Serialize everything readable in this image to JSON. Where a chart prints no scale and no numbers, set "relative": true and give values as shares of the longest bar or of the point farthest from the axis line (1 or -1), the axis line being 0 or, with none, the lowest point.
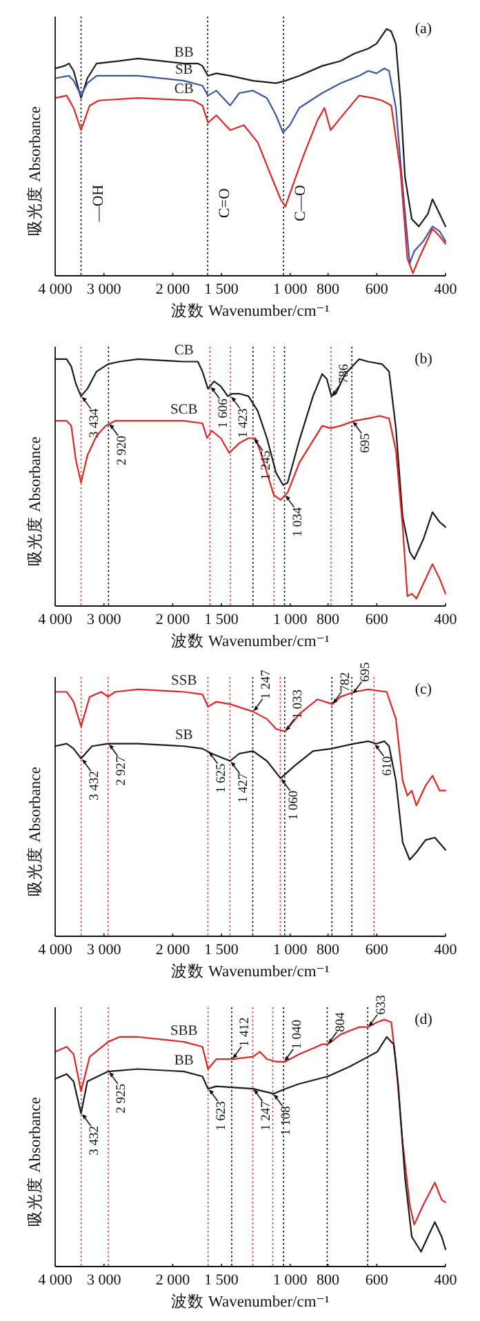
{
  "chart_data": [
    {
      "type": "line",
      "title": "(a)",
      "xlabel": "波数 Wavenumber/cm⁻¹",
      "ylabel": "吸光度 Absorbance",
      "relative": true,
      "log": "x",
      "xlim": [
        4000,
        400
      ],
      "xticks": [
        {
          "value": 4000,
          "label": "4 000"
        },
        {
          "value": 3000,
          "label": "3 000"
        },
        {
          "value": 2000,
          "label": "2 000"
        },
        {
          "value": 1500,
          "label": "1 500"
        },
        {
          "value": 1000,
          "label": "1 000"
        },
        800,
        600,
        400
      ],
      "series": [
        {
          "name": "BB",
          "color": "#1a1a1a",
          "x": [
            4000,
            3789,
            3687,
            3588,
            3434,
            3308,
            3133,
            2736,
            2454,
            2142,
            1870,
            1724,
            1678,
            1624,
            1546,
            1425,
            1245,
            1087,
            1029,
            948,
            828,
            743,
            685,
            631,
            601,
            566,
            551,
            536,
            522,
            508,
            488,
            468,
            444,
            432,
            414,
            400
          ],
          "values": [
            0.84,
            0.85,
            0.86,
            0.83,
            0.72,
            0.8,
            0.86,
            0.87,
            0.88,
            0.87,
            0.86,
            0.86,
            0.85,
            0.81,
            0.82,
            0.81,
            0.79,
            0.78,
            0.79,
            0.81,
            0.85,
            0.87,
            0.9,
            0.92,
            0.94,
            1,
            0.99,
            0.94,
            0.72,
            0.4,
            0.23,
            0.2,
            0.25,
            0.31,
            0.25,
            0.2
          ]
        },
        {
          "name": "SB",
          "color": "#3a55a8",
          "x": [
            4000,
            3687,
            3588,
            3434,
            3308,
            3133,
            2454,
            1870,
            1678,
            1624,
            1546,
            1425,
            1350,
            1245,
            1147,
            1087,
            1043,
            1002,
            948,
            828,
            743,
            666,
            631,
            601,
            574,
            558,
            536,
            515,
            494,
            481,
            456,
            432,
            414,
            400
          ],
          "values": [
            0.8,
            0.81,
            0.79,
            0.73,
            0.78,
            0.81,
            0.81,
            0.79,
            0.77,
            0.73,
            0.75,
            0.69,
            0.74,
            0.75,
            0.72,
            0.65,
            0.58,
            0.61,
            0.68,
            0.74,
            0.78,
            0.81,
            0.83,
            0.82,
            0.84,
            0.83,
            0.68,
            0.36,
            0.05,
            0.1,
            0.14,
            0.2,
            0.18,
            0.14
          ]
        },
        {
          "name": "CB",
          "color": "#e02424",
          "x": [
            4000,
            3738,
            3588,
            3434,
            3263,
            3091,
            2454,
            1771,
            1678,
            1624,
            1546,
            1425,
            1314,
            1211,
            1116,
            1058,
            1029,
            988,
            923,
            851,
            817,
            788,
            743,
            666,
            614,
            582,
            551,
            522,
            501,
            485,
            468,
            432,
            414,
            400
          ],
          "values": [
            0.72,
            0.73,
            0.68,
            0.59,
            0.69,
            0.71,
            0.72,
            0.71,
            0.69,
            0.62,
            0.65,
            0.59,
            0.61,
            0.54,
            0.4,
            0.31,
            0.28,
            0.36,
            0.49,
            0.63,
            0.68,
            0.59,
            0.64,
            0.73,
            0.72,
            0.71,
            0.69,
            0.43,
            0.07,
            0.01,
            0.07,
            0.19,
            0.16,
            0.13
          ]
        }
      ],
      "ref_lines": [
        {
          "axis": "x",
          "value": 3434,
          "label": "—OH",
          "color": "#000000",
          "line_style": "dotted"
        },
        {
          "axis": "x",
          "value": 1627,
          "label": "C=O",
          "color": "#000000",
          "line_style": "dotted"
        },
        {
          "axis": "x",
          "value": 1040,
          "label": "C—O",
          "color": "#000000",
          "line_style": "dotted"
        }
      ]
    },
    {
      "type": "line",
      "title": "(b)",
      "xlabel": "波数 Wavenumber/cm⁻¹",
      "ylabel": "吸光度 Absorbance",
      "relative": true,
      "log": "x",
      "xlim": [
        4000,
        400
      ],
      "xticks": [
        {
          "value": 4000,
          "label": "4 000"
        },
        {
          "value": 3000,
          "label": "3 000"
        },
        {
          "value": 2000,
          "label": "2 000"
        },
        {
          "value": 1500,
          "label": "1 500"
        },
        {
          "value": 1000,
          "label": "1 000"
        },
        800,
        600,
        400
      ],
      "series": [
        {
          "name": "CB",
          "color": "#1a1a1a",
          "x": [
            4000,
            3738,
            3638,
            3540,
            3434,
            3308,
            3133,
            2927,
            2736,
            2454,
            1870,
            1724,
            1678,
            1624,
            1567,
            1505,
            1445,
            1406,
            1350,
            1279,
            1211,
            1147,
            1087,
            1043,
            1015,
            948,
            874,
            828,
            806,
            784,
            764,
            723,
            666,
            631,
            582,
            558,
            536,
            515,
            494,
            481,
            456,
            432,
            414,
            400
          ],
          "values": [
            1,
            1,
            0.97,
            0.9,
            0.85,
            0.88,
            0.95,
            0.98,
            0.99,
            1,
            0.99,
            0.99,
            0.95,
            0.88,
            0.91,
            0.89,
            0.85,
            0.86,
            0.86,
            0.85,
            0.79,
            0.68,
            0.54,
            0.49,
            0.5,
            0.67,
            0.85,
            0.94,
            0.92,
            0.85,
            0.86,
            0.94,
            1,
            0.99,
            0.98,
            0.95,
            0.72,
            0.36,
            0.22,
            0.19,
            0.27,
            0.38,
            0.34,
            0.32
          ]
        },
        {
          "name": "SCB",
          "color": "#e02424",
          "x": [
            4000,
            3738,
            3638,
            3540,
            3434,
            3308,
            3133,
            2967,
            2811,
            2454,
            1870,
            1678,
            1633,
            1589,
            1505,
            1433,
            1350,
            1279,
            1228,
            1195,
            1147,
            1102,
            1058,
            1015,
            948,
            874,
            828,
            788,
            743,
            685,
            631,
            590,
            558,
            536,
            515,
            501,
            488,
            475,
            456,
            432,
            414,
            400
          ],
          "values": [
            0.75,
            0.75,
            0.73,
            0.59,
            0.5,
            0.61,
            0.69,
            0.73,
            0.75,
            0.75,
            0.75,
            0.74,
            0.68,
            0.71,
            0.68,
            0.62,
            0.66,
            0.68,
            0.68,
            0.63,
            0.54,
            0.45,
            0.43,
            0.46,
            0.58,
            0.67,
            0.73,
            0.72,
            0.73,
            0.75,
            0.76,
            0.77,
            0.76,
            0.63,
            0.32,
            0.04,
            0.05,
            0.03,
            0.09,
            0.17,
            0.11,
            0.05
          ]
        }
      ],
      "ref_lines": [
        {
          "axis": "x",
          "value": 3434,
          "color": "#e03030",
          "line_style": "dotted"
        },
        {
          "axis": "x",
          "value": 1606,
          "color": "#e03030",
          "line_style": "dotted"
        },
        {
          "axis": "x",
          "value": 1423,
          "color": "#e03030",
          "line_style": "dotted"
        },
        {
          "axis": "x",
          "value": 1100,
          "color": "#e03030",
          "line_style": "dotted"
        },
        {
          "axis": "x",
          "value": 786,
          "color": "#e03030",
          "line_style": "dotted"
        },
        {
          "axis": "x",
          "value": 2920,
          "color": "#000000",
          "line_style": "dotted"
        },
        {
          "axis": "x",
          "value": 1245,
          "color": "#000000",
          "line_style": "dotted"
        },
        {
          "axis": "x",
          "value": 1034,
          "color": "#000000",
          "line_style": "dotted"
        },
        {
          "axis": "x",
          "value": 695,
          "color": "#000000",
          "line_style": "dotted"
        }
      ],
      "annotations": [
        {
          "text": "3 434",
          "x": 3434,
          "y": 0.85
        },
        {
          "text": "2 920",
          "x": 2920,
          "y": 0.74
        },
        {
          "text": "1 606",
          "x": 1606,
          "y": 0.89
        },
        {
          "text": "1 423",
          "x": 1423,
          "y": 0.85
        },
        {
          "text": "1 245",
          "x": 1245,
          "y": 0.68
        },
        {
          "text": "1 034",
          "x": 1034,
          "y": 0.45
        },
        {
          "text": "786",
          "x": 786,
          "y": 0.85
        },
        {
          "text": "695",
          "x": 695,
          "y": 0.75
        }
      ]
    },
    {
      "type": "line",
      "title": "(c)",
      "xlabel": "波数 Wavenumber/cm⁻¹",
      "ylabel": "吸光度 Absorbance",
      "relative": true,
      "log": "x",
      "xlim": [
        4000,
        400
      ],
      "xticks": [
        {
          "value": 4000,
          "label": "4 000"
        },
        {
          "value": 3000,
          "label": "3 000"
        },
        {
          "value": 2000,
          "label": "2 000"
        },
        {
          "value": 1500,
          "label": "1 500"
        },
        {
          "value": 1000,
          "label": "1 000"
        },
        800,
        600,
        400
      ],
      "series": [
        {
          "name": "SSB",
          "color": "#e02424",
          "x": [
            4000,
            3738,
            3588,
            3434,
            3263,
            3049,
            2927,
            2811,
            2454,
            1870,
            1678,
            1624,
            1546,
            1425,
            1245,
            1147,
            1087,
            1029,
            948,
            851,
            780,
            743,
            685,
            631,
            566,
            536,
            515,
            501,
            488,
            475,
            450,
            432,
            414,
            400
          ],
          "values": [
            0.99,
            0.99,
            0.95,
            0.85,
            0.97,
            0.99,
            0.97,
            0.99,
            1,
            0.99,
            0.98,
            0.93,
            0.95,
            0.94,
            0.91,
            0.88,
            0.84,
            0.83,
            0.9,
            0.96,
            0.94,
            0.97,
            0.99,
            1,
            0.99,
            0.88,
            0.63,
            0.57,
            0.59,
            0.53,
            0.61,
            0.65,
            0.59,
            0.59
          ]
        },
        {
          "name": "SB",
          "color": "#1a1a1a",
          "x": [
            4000,
            3738,
            3588,
            3434,
            3219,
            2927,
            2454,
            1870,
            1678,
            1589,
            1425,
            1350,
            1245,
            1147,
            1058,
            975,
            874,
            784,
            685,
            631,
            601,
            574,
            558,
            536,
            515,
            494,
            475,
            450,
            426,
            400
          ],
          "values": [
            0.77,
            0.78,
            0.76,
            0.72,
            0.77,
            0.78,
            0.78,
            0.77,
            0.76,
            0.74,
            0.71,
            0.74,
            0.75,
            0.71,
            0.64,
            0.69,
            0.75,
            0.76,
            0.78,
            0.79,
            0.78,
            0.79,
            0.77,
            0.63,
            0.38,
            0.31,
            0.34,
            0.39,
            0.4,
            0.35
          ]
        }
      ],
      "ref_lines": [
        {
          "axis": "x",
          "value": 3432,
          "color": "#e03030",
          "line_style": "dotted"
        },
        {
          "axis": "x",
          "value": 2927,
          "color": "#e03030",
          "line_style": "dotted"
        },
        {
          "axis": "x",
          "value": 1625,
          "color": "#e03030",
          "line_style": "dotted"
        },
        {
          "axis": "x",
          "value": 1427,
          "color": "#e03030",
          "line_style": "dotted"
        },
        {
          "axis": "x",
          "value": 1060,
          "color": "#e03030",
          "line_style": "dotted"
        },
        {
          "axis": "x",
          "value": 610,
          "color": "#e03030",
          "line_style": "dotted"
        },
        {
          "axis": "x",
          "value": 1247,
          "color": "#000000",
          "line_style": "dotted"
        },
        {
          "axis": "x",
          "value": 1033,
          "color": "#000000",
          "line_style": "dotted"
        },
        {
          "axis": "x",
          "value": 782,
          "color": "#000000",
          "line_style": "dotted"
        },
        {
          "axis": "x",
          "value": 695,
          "color": "#000000",
          "line_style": "dotted"
        }
      ],
      "annotations": [
        {
          "text": "3 432",
          "x": 3432,
          "y": 0.72
        },
        {
          "text": "2 927",
          "x": 2927,
          "y": 0.78
        },
        {
          "text": "1 625",
          "x": 1625,
          "y": 0.75
        },
        {
          "text": "1 427",
          "x": 1427,
          "y": 0.71
        },
        {
          "text": "1 060",
          "x": 1060,
          "y": 0.64
        },
        {
          "text": "610",
          "x": 610,
          "y": 0.78
        },
        {
          "text": "1 247",
          "x": 1247,
          "y": 0.91
        },
        {
          "text": "1 033",
          "x": 1033,
          "y": 0.83
        },
        {
          "text": "782",
          "x": 782,
          "y": 0.94
        },
        {
          "text": "695",
          "x": 695,
          "y": 0.98
        }
      ]
    },
    {
      "type": "line",
      "title": "(d)",
      "xlabel": "波数 Wavenumber/cm⁻¹",
      "ylabel": "吸光度 Absorbance",
      "relative": true,
      "log": "x",
      "xlim": [
        4000,
        400
      ],
      "xticks": [
        {
          "value": 4000,
          "label": "4 000"
        },
        {
          "value": 3000,
          "label": "3 000"
        },
        {
          "value": 2000,
          "label": "2 000"
        },
        {
          "value": 1500,
          "label": "1 500"
        },
        {
          "value": 1000,
          "label": "1 000"
        },
        800,
        600,
        400
      ],
      "series": [
        {
          "name": "SBB",
          "color": "#e02424",
          "x": [
            4000,
            3738,
            3588,
            3434,
            3263,
            2927,
            2736,
            2454,
            1870,
            1678,
            1624,
            1546,
            1406,
            1245,
            1195,
            1147,
            1087,
            1029,
            948,
            828,
            801,
            743,
            666,
            631,
            598,
            574,
            551,
            536,
            515,
            494,
            481,
            456,
            426,
            409,
            400
          ],
          "values": [
            0.87,
            0.89,
            0.86,
            0.71,
            0.85,
            0.91,
            0.93,
            0.93,
            0.91,
            0.89,
            0.8,
            0.84,
            0.84,
            0.85,
            0.87,
            0.84,
            0.83,
            0.83,
            0.86,
            0.9,
            0.9,
            0.94,
            0.97,
            0.97,
            0.99,
            1,
            0.99,
            0.83,
            0.5,
            0.25,
            0.17,
            0.25,
            0.34,
            0.27,
            0.26
          ]
        },
        {
          "name": "BB",
          "color": "#1a1a1a",
          "x": [
            4000,
            3738,
            3588,
            3434,
            3308,
            2927,
            2454,
            1870,
            1678,
            1624,
            1546,
            1245,
            1102,
            1029,
            948,
            801,
            704,
            631,
            598,
            566,
            543,
            529,
            508,
            488,
            462,
            444,
            426,
            409,
            400
          ],
          "values": [
            0.76,
            0.78,
            0.75,
            0.62,
            0.75,
            0.79,
            0.8,
            0.79,
            0.77,
            0.72,
            0.73,
            0.72,
            0.7,
            0.72,
            0.74,
            0.77,
            0.81,
            0.85,
            0.87,
            0.93,
            0.9,
            0.74,
            0.36,
            0.12,
            0.06,
            0.12,
            0.18,
            0.12,
            0.07
          ]
        }
      ],
      "ref_lines": [
        {
          "axis": "x",
          "value": 3432,
          "color": "#e03030",
          "line_style": "dotted"
        },
        {
          "axis": "x",
          "value": 2925,
          "color": "#e03030",
          "line_style": "dotted"
        },
        {
          "axis": "x",
          "value": 1623,
          "color": "#e03030",
          "line_style": "dotted"
        },
        {
          "axis": "x",
          "value": 1247,
          "color": "#e03030",
          "line_style": "dotted"
        },
        {
          "axis": "x",
          "value": 1108,
          "color": "#e03030",
          "line_style": "dotted"
        },
        {
          "axis": "x",
          "value": 1412,
          "color": "#000000",
          "line_style": "dotted"
        },
        {
          "axis": "x",
          "value": 1040,
          "color": "#000000",
          "line_style": "dotted"
        },
        {
          "axis": "x",
          "value": 804,
          "color": "#000000",
          "line_style": "dotted"
        },
        {
          "axis": "x",
          "value": 633,
          "color": "#000000",
          "line_style": "dotted"
        }
      ],
      "annotations": [
        {
          "text": "3 432",
          "x": 3432,
          "y": 0.62
        },
        {
          "text": "2 925",
          "x": 2925,
          "y": 0.79
        },
        {
          "text": "1 623",
          "x": 1623,
          "y": 0.72
        },
        {
          "text": "1 247",
          "x": 1247,
          "y": 0.72
        },
        {
          "text": "1 108",
          "x": 1108,
          "y": 0.7
        },
        {
          "text": "1 412",
          "x": 1412,
          "y": 0.84
        },
        {
          "text": "1 040",
          "x": 1040,
          "y": 0.83
        },
        {
          "text": "804",
          "x": 804,
          "y": 0.9
        },
        {
          "text": "633",
          "x": 633,
          "y": 0.97
        }
      ]
    }
  ]
}
